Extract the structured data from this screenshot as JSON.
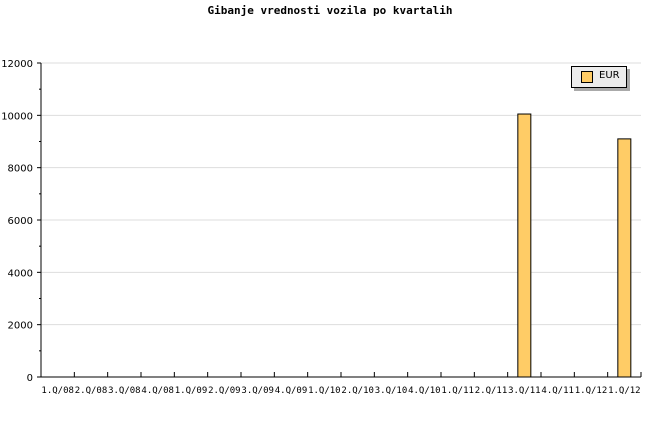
{
  "chart_data": {
    "type": "bar",
    "title": "Gibanje vrednosti vozila po kvartalih",
    "xlabel": "",
    "ylabel": "",
    "categories": [
      "1.Q/08",
      "2.Q/08",
      "3.Q/08",
      "4.Q/08",
      "1.Q/09",
      "2.Q/09",
      "3.Q/09",
      "4.Q/09",
      "1.Q/10",
      "2.Q/10",
      "3.Q/10",
      "4.Q/10",
      "1.Q/11",
      "2.Q/11",
      "3.Q/11",
      "4.Q/11",
      "1.Q/12",
      "1.Q/12"
    ],
    "series": [
      {
        "name": "EUR",
        "color": "#ffcc66",
        "values": [
          0,
          0,
          0,
          0,
          0,
          0,
          0,
          0,
          0,
          0,
          0,
          0,
          0,
          0,
          10050,
          0,
          0,
          9100
        ]
      }
    ],
    "ylim": [
      0,
      12000
    ],
    "yticks": [
      0,
      2000,
      4000,
      6000,
      8000,
      10000,
      12000
    ],
    "grid": true,
    "legend_position": "top-right"
  }
}
